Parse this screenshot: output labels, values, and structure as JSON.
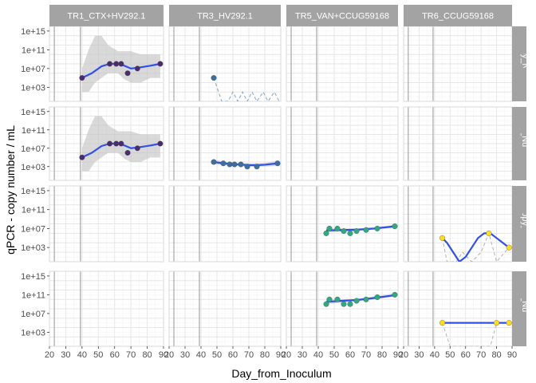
{
  "chart_data": {
    "type": "scatter",
    "layout": "facet-grid",
    "xlabel": "Day_from_Inoculum",
    "ylabel": "qPCR - copy number / mL",
    "y_scale": "log10",
    "xlim": [
      20,
      90
    ],
    "ylim": [
      1,
      1e+16
    ],
    "x_ticks": [
      20,
      30,
      40,
      50,
      60,
      70,
      80,
      90
    ],
    "y_ticks": [
      {
        "value": 1000.0,
        "label": "1e+03"
      },
      {
        "value": 10000000.0,
        "label": "1e+07"
      },
      {
        "value": 100000000000.0,
        "label": "1e+11"
      },
      {
        "value": 1000000000000000.0,
        "label": "1e+15"
      }
    ],
    "grid": true,
    "vlines": [
      23,
      39
    ],
    "columns": [
      "TR1_CTX+HV292.1",
      "TR3_HV292.1",
      "TR5_VAN+CCUG59168",
      "TR6_CCUG59168"
    ],
    "rows": [
      "1_Copy_Number_",
      "Copy_Number_p",
      "168_Copy_Number",
      "Copy_Number_p"
    ],
    "colors": {
      "strip_bg": "#a3a3a3",
      "panel_border": "#d9d9d9",
      "grid_major": "#e6e6e6",
      "grid_minor": "#f2f2f2",
      "vline": "#a6a6a6",
      "smooth_line": "#3050e8",
      "ribbon": "#bfbfbf",
      "tr1_point": "#4a2c6e",
      "tr3_point": "#3b6fa0",
      "tr5_point": "#2eaa83",
      "tr6_point": "#ffdd1e",
      "tr3_dash": "#7fa3c4",
      "tr6_dash": "#b0b0b0"
    },
    "panels": [
      {
        "row": 0,
        "col": 0,
        "point_color": "#4a2c6e",
        "points": [
          [
            40,
            100000.0
          ],
          [
            57,
            100000000.0
          ],
          [
            61,
            100000000.0
          ],
          [
            64,
            100000000.0
          ],
          [
            68,
            1000000.0
          ],
          [
            74,
            10000000.0
          ],
          [
            88,
            100000000.0
          ]
        ],
        "smooth": [
          [
            40,
            100000.0
          ],
          [
            46,
            1000000.0
          ],
          [
            52,
            30000000.0
          ],
          [
            57,
            100000000.0
          ],
          [
            62,
            100000000.0
          ],
          [
            66,
            40000000.0
          ],
          [
            70,
            10000000.0
          ],
          [
            75,
            16000000.0
          ],
          [
            82,
            40000000.0
          ],
          [
            88,
            100000000.0
          ]
        ],
        "ribbon_upper": [
          [
            40,
            10000000.0
          ],
          [
            44,
            100000000000.0
          ],
          [
            48,
            100000000000000.0
          ],
          [
            52,
            100000000000000.0
          ],
          [
            56,
            1000000000000.0
          ],
          [
            62,
            50000000000.0
          ],
          [
            66,
            50000000000.0
          ],
          [
            70,
            50000000000.0
          ],
          [
            76,
            10000000000.0
          ],
          [
            82,
            10000000000.0
          ],
          [
            88,
            10000000000.0
          ]
        ],
        "ribbon_lower": [
          [
            40,
            100.0
          ],
          [
            44,
            100.0
          ],
          [
            48,
            10000.0
          ],
          [
            52,
            100000.0
          ],
          [
            56,
            1000000.0
          ],
          [
            62,
            1000000.0
          ],
          [
            66,
            50000.0
          ],
          [
            70,
            10000.0
          ],
          [
            76,
            10000.0
          ],
          [
            82,
            100000.0
          ],
          [
            88,
            100000.0
          ]
        ]
      },
      {
        "row": 0,
        "col": 1,
        "point_color": "#3b6fa0",
        "points": [
          [
            48,
            100000.0
          ]
        ],
        "dashed": [
          [
            48,
            100000.0
          ],
          [
            53,
            1
          ],
          [
            57,
            1
          ],
          [
            60,
            100
          ],
          [
            63,
            1
          ],
          [
            66,
            100
          ],
          [
            69,
            1
          ],
          [
            72,
            100
          ],
          [
            75,
            1
          ],
          [
            79,
            100
          ],
          [
            82,
            1
          ],
          [
            86,
            100
          ],
          [
            89,
            1
          ]
        ],
        "dash_color": "#7fa3c4"
      },
      {
        "row": 1,
        "col": 0,
        "point_color": "#4a2c6e",
        "points": [
          [
            40,
            100000.0
          ],
          [
            57,
            100000000.0
          ],
          [
            61,
            100000000.0
          ],
          [
            64,
            100000000.0
          ],
          [
            68,
            1000000.0
          ],
          [
            74,
            10000000.0
          ],
          [
            88,
            100000000.0
          ]
        ],
        "smooth": [
          [
            40,
            100000.0
          ],
          [
            46,
            1000000.0
          ],
          [
            52,
            30000000.0
          ],
          [
            57,
            100000000.0
          ],
          [
            62,
            100000000.0
          ],
          [
            66,
            40000000.0
          ],
          [
            70,
            10000000.0
          ],
          [
            75,
            16000000.0
          ],
          [
            82,
            40000000.0
          ],
          [
            88,
            100000000.0
          ]
        ],
        "ribbon_upper": [
          [
            40,
            10000000.0
          ],
          [
            44,
            100000000000.0
          ],
          [
            48,
            100000000000000.0
          ],
          [
            52,
            100000000000000.0
          ],
          [
            56,
            1000000000000.0
          ],
          [
            62,
            50000000000.0
          ],
          [
            66,
            50000000000.0
          ],
          [
            70,
            50000000000.0
          ],
          [
            76,
            10000000000.0
          ],
          [
            82,
            10000000000.0
          ],
          [
            88,
            10000000000.0
          ]
        ],
        "ribbon_lower": [
          [
            40,
            100.0
          ],
          [
            44,
            100.0
          ],
          [
            48,
            10000.0
          ],
          [
            52,
            100000.0
          ],
          [
            56,
            1000000.0
          ],
          [
            62,
            1000000.0
          ],
          [
            66,
            50000.0
          ],
          [
            70,
            10000.0
          ],
          [
            76,
            10000.0
          ],
          [
            82,
            100000.0
          ],
          [
            88,
            100000.0
          ]
        ]
      },
      {
        "row": 1,
        "col": 1,
        "point_color": "#3b6fa0",
        "points": [
          [
            48,
            10000.0
          ],
          [
            54,
            5000.0
          ],
          [
            58,
            3000.0
          ],
          [
            61,
            3000.0
          ],
          [
            65,
            3000.0
          ],
          [
            69,
            1000.0
          ],
          [
            75,
            1000.0
          ],
          [
            88,
            5000.0
          ]
        ],
        "smooth": [
          [
            48,
            10000.0
          ],
          [
            54,
            5000.0
          ],
          [
            58,
            4000.0
          ],
          [
            62,
            3000.0
          ],
          [
            66,
            2500.0
          ],
          [
            70,
            2000.0
          ],
          [
            75,
            2000.0
          ],
          [
            80,
            2500.0
          ],
          [
            88,
            5000.0
          ]
        ],
        "ribbon_upper": [
          [
            48,
            30000.0
          ],
          [
            58,
            8000.0
          ],
          [
            70,
            5000.0
          ],
          [
            80,
            6000.0
          ],
          [
            88,
            20000.0
          ]
        ],
        "ribbon_lower": [
          [
            48,
            3000.0
          ],
          [
            58,
            2000.0
          ],
          [
            70,
            800.0
          ],
          [
            80,
            1000.0
          ],
          [
            88,
            1500.0
          ]
        ]
      },
      {
        "row": 2,
        "col": 2,
        "point_color": "#2eaa83",
        "points": [
          [
            45,
            1000000.0
          ],
          [
            47,
            10000000.0
          ],
          [
            52,
            10000000.0
          ],
          [
            56,
            3000000.0
          ],
          [
            60,
            1000000.0
          ],
          [
            64,
            3000000.0
          ],
          [
            70,
            5000000.0
          ],
          [
            77,
            10000000.0
          ],
          [
            88,
            30000000.0
          ]
        ],
        "smooth": [
          [
            45,
            4000000.0
          ],
          [
            55,
            5000000.0
          ],
          [
            65,
            6000000.0
          ],
          [
            75,
            10000000.0
          ],
          [
            88,
            30000000.0
          ]
        ],
        "ribbon_upper": [
          [
            45,
            10000000.0
          ],
          [
            65,
            10000000.0
          ],
          [
            88,
            60000000.0
          ]
        ],
        "ribbon_lower": [
          [
            45,
            1500000.0
          ],
          [
            65,
            3000000.0
          ],
          [
            88,
            15000000.0
          ]
        ]
      },
      {
        "row": 2,
        "col": 3,
        "point_color": "#ffdd1e",
        "points": [
          [
            45,
            100000.0
          ],
          [
            75,
            1000000.0
          ],
          [
            88,
            1000.0
          ]
        ],
        "smooth": [
          [
            45,
            100000.0
          ],
          [
            48,
            10000.0
          ],
          [
            52,
            100.0
          ],
          [
            56,
            1
          ],
          [
            60,
            10
          ],
          [
            64,
            1000.0
          ],
          [
            68,
            100000.0
          ],
          [
            72,
            1000000.0
          ],
          [
            76,
            1000000.0
          ],
          [
            80,
            100000.0
          ],
          [
            84,
            10000.0
          ],
          [
            88,
            1000.0
          ]
        ],
        "dashed": [
          [
            45,
            100000.0
          ],
          [
            48,
            1
          ],
          [
            54,
            1
          ],
          [
            58,
            100
          ],
          [
            64,
            1
          ],
          [
            70,
            100
          ],
          [
            75,
            1000000.0
          ],
          [
            80,
            1
          ],
          [
            88,
            1000.0
          ]
        ],
        "dash_color": "#b0b0b0"
      },
      {
        "row": 3,
        "col": 2,
        "point_color": "#2eaa83",
        "points": [
          [
            45,
            1000000000.0
          ],
          [
            47,
            10000000000.0
          ],
          [
            52,
            10000000000.0
          ],
          [
            56,
            1000000000.0
          ],
          [
            60,
            1000000000.0
          ],
          [
            64,
            5000000000.0
          ],
          [
            70,
            10000000000.0
          ],
          [
            77,
            30000000000.0
          ],
          [
            88,
            100000000000.0
          ]
        ],
        "smooth": [
          [
            45,
            3000000000.0
          ],
          [
            55,
            5000000000.0
          ],
          [
            65,
            8000000000.0
          ],
          [
            75,
            20000000000.0
          ],
          [
            88,
            80000000000.0
          ]
        ],
        "ribbon_upper": [
          [
            45,
            8000000000.0
          ],
          [
            65,
            15000000000.0
          ],
          [
            88,
            200000000000.0
          ]
        ],
        "ribbon_lower": [
          [
            45,
            1000000000.0
          ],
          [
            65,
            4000000000.0
          ],
          [
            88,
            40000000000.0
          ]
        ]
      },
      {
        "row": 3,
        "col": 3,
        "point_color": "#ffdd1e",
        "points": [
          [
            45,
            100000.0
          ],
          [
            80,
            100000.0
          ],
          [
            88,
            100000.0
          ]
        ],
        "smooth": [
          [
            45,
            100000.0
          ],
          [
            88,
            100000.0
          ]
        ],
        "dashed": [
          [
            45,
            100000.0
          ],
          [
            50,
            1
          ],
          [
            56,
            1
          ],
          [
            60,
            1
          ],
          [
            66,
            1
          ],
          [
            70,
            1
          ],
          [
            76,
            1
          ],
          [
            80,
            100000.0
          ],
          [
            88,
            100000.0
          ]
        ],
        "dash_color": "#b0b0b0"
      }
    ]
  }
}
